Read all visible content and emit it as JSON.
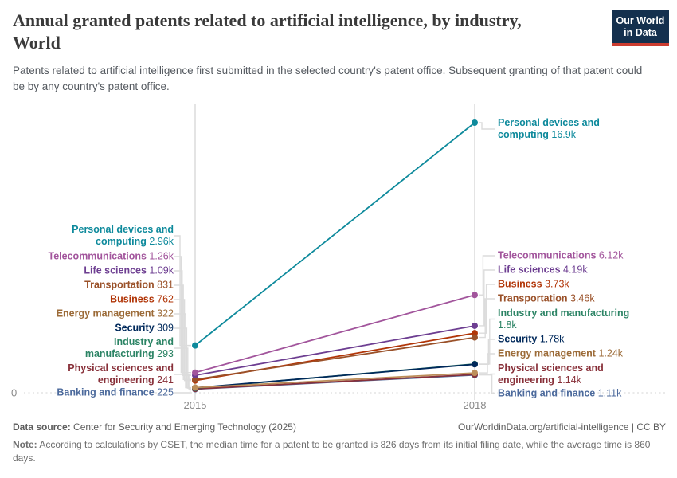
{
  "header": {
    "title": "Annual granted patents related to artificial intelligence, by industry, World",
    "subtitle": "Patents related to artificial intelligence first submitted in the selected country's patent office. Subsequent granting of that patent could be by any country's patent office.",
    "logo": {
      "line1": "Our World",
      "line2": "in Data",
      "bg_color": "#14304e",
      "accent_color": "#cc3c30"
    }
  },
  "chart_data": {
    "type": "line",
    "variant": "slope",
    "x": [
      2015,
      2018
    ],
    "x_ticks": [
      "2015",
      "2018"
    ],
    "y_zero_label": "0",
    "ylim": [
      0,
      16900
    ],
    "grid": "zero-line-only",
    "legend_position": "inline-labels",
    "axis_color": "#c8c8c8",
    "grid_color": "#d4d4d4",
    "leader_color": "#dcdcdc",
    "tick_text_color": "#8a8a8a",
    "series": [
      {
        "name": "Personal devices and computing",
        "color": "#0e8a9c",
        "values": [
          2960,
          16900
        ],
        "start_label": "2.96k",
        "end_label": "16.9k"
      },
      {
        "name": "Telecommunications",
        "color": "#a2559c",
        "values": [
          1260,
          6120
        ],
        "start_label": "1.26k",
        "end_label": "6.12k"
      },
      {
        "name": "Life sciences",
        "color": "#6d3e91",
        "values": [
          1090,
          4190
        ],
        "start_label": "1.09k",
        "end_label": "4.19k"
      },
      {
        "name": "Transportation",
        "color": "#9a5129",
        "values": [
          831,
          3460
        ],
        "start_label": "831",
        "end_label": "3.46k"
      },
      {
        "name": "Business",
        "color": "#b13507",
        "values": [
          762,
          3730
        ],
        "start_label": "762",
        "end_label": "3.73k"
      },
      {
        "name": "Energy management",
        "color": "#9c6b38",
        "line_color": "#bc8e5a",
        "values": [
          322,
          1240
        ],
        "start_label": "322",
        "end_label": "1.24k"
      },
      {
        "name": "Security",
        "color": "#00295b",
        "values": [
          309,
          1780
        ],
        "start_label": "309",
        "end_label": "1.78k"
      },
      {
        "name": "Industry and manufacturing",
        "color": "#2c8465",
        "values": [
          293,
          1800
        ],
        "start_label": "293",
        "end_label": "1.8k"
      },
      {
        "name": "Physical sciences and engineering",
        "color": "#883039",
        "values": [
          241,
          1140
        ],
        "start_label": "241",
        "end_label": "1.14k"
      },
      {
        "name": "Banking and finance",
        "color": "#4c6a9c",
        "values": [
          225,
          1110
        ],
        "start_label": "225",
        "end_label": "1.11k"
      }
    ]
  },
  "footer": {
    "datasource_label": "Data source:",
    "datasource_value": "Center for Security and Emerging Technology (2025)",
    "cite": "OurWorldinData.org/artificial-intelligence | CC BY",
    "note_label": "Note:",
    "note_value": "According to calculations by CSET, the median time for a patent to be granted is 826 days from its initial filing date, while the average time is 860 days."
  }
}
